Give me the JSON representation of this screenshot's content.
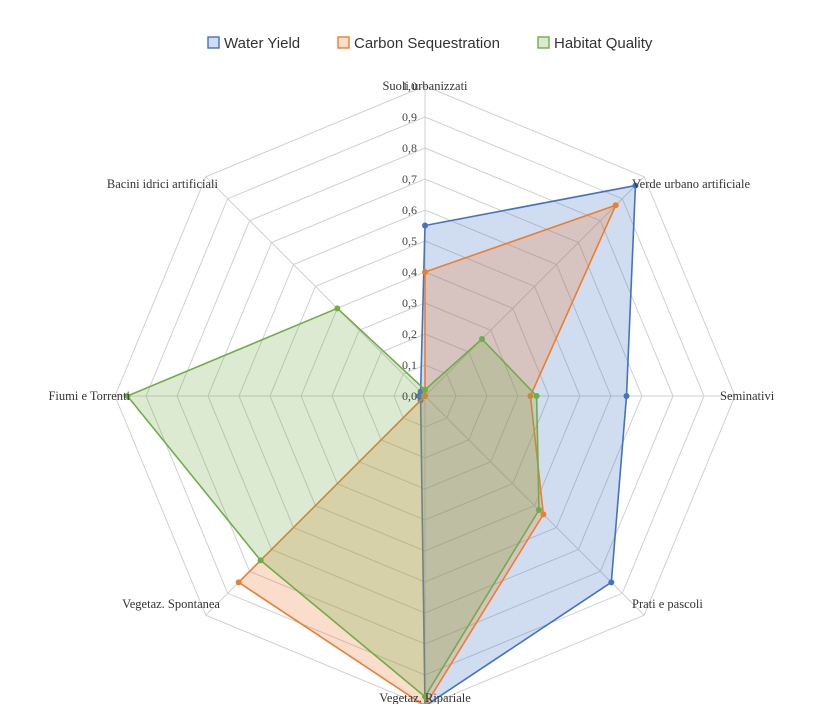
{
  "chart_data": {
    "type": "radar",
    "title": "",
    "categories": [
      "Suoli urbanizzati",
      "Verde urbano artificiale",
      "Seminativi",
      "Prati e pascoli",
      "Vegetaz. Ripariale",
      "Vegetaz. Spontanea",
      "Fiumi e Torrenti",
      "Bacini idrici artificiali"
    ],
    "rlim": [
      0,
      1
    ],
    "ticks": [
      "0,0",
      "0,1",
      "0,2",
      "0,3",
      "0,4",
      "0,5",
      "0,6",
      "0,7",
      "0,8",
      "0,9",
      "1,0"
    ],
    "grid": true,
    "legend_position": "top",
    "series": [
      {
        "name": "Water Yield",
        "color": "#4472c4",
        "values": [
          0.55,
          0.96,
          0.65,
          0.85,
          1.0,
          0.02,
          0.02,
          0.02
        ]
      },
      {
        "name": "Carbon Sequestration",
        "color": "#ed7d31",
        "values": [
          0.4,
          0.87,
          0.34,
          0.54,
          1.0,
          0.85,
          0.0,
          0.0
        ]
      },
      {
        "name": "Habitat Quality",
        "color": "#70ad47",
        "values": [
          0.02,
          0.26,
          0.36,
          0.52,
          0.97,
          0.75,
          0.96,
          0.4
        ]
      }
    ]
  }
}
